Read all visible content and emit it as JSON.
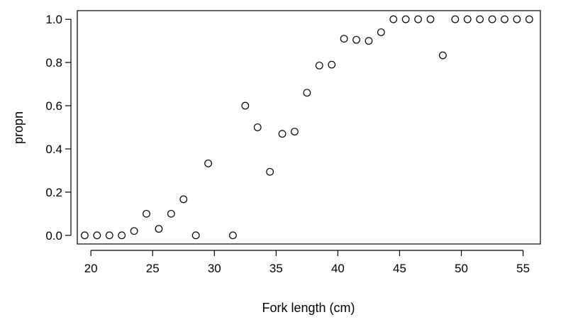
{
  "chart_data": {
    "type": "scatter",
    "title": "",
    "xlabel": "Fork length (cm)",
    "ylabel": "propn",
    "xlim": [
      18.9,
      56.4
    ],
    "ylim": [
      -0.04,
      1.04
    ],
    "xticks": [
      20,
      25,
      30,
      35,
      40,
      45,
      50,
      55
    ],
    "yticks": [
      0.0,
      0.2,
      0.4,
      0.6,
      0.8,
      1.0
    ],
    "ytick_labels": [
      "0.0",
      "0.2",
      "0.4",
      "0.6",
      "0.8",
      "1.0"
    ],
    "grid": false,
    "marker": "open-circle",
    "marker_color": "#000000",
    "series": [
      {
        "x": [
          19.5,
          20.5,
          21.5,
          22.5,
          23.5,
          24.5,
          25.5,
          26.5,
          27.5,
          28.5,
          29.5,
          31.5,
          32.5,
          33.5,
          34.5,
          35.5,
          36.5,
          37.5,
          38.5,
          39.5,
          40.5,
          41.5,
          42.5,
          43.5,
          44.5,
          45.5,
          46.5,
          47.5,
          48.5,
          49.5,
          50.5,
          51.5,
          52.5,
          53.5,
          54.5,
          55.5
        ],
        "y": [
          0.0,
          0.0,
          0.0,
          0.0,
          0.02,
          0.1,
          0.03,
          0.1,
          0.167,
          0.0,
          0.333,
          0.0,
          0.6,
          0.5,
          0.294,
          0.47,
          0.48,
          0.66,
          0.786,
          0.79,
          0.91,
          0.905,
          0.9,
          0.94,
          1.0,
          1.0,
          1.0,
          1.0,
          0.833,
          1.0,
          1.0,
          1.0,
          1.0,
          1.0,
          1.0,
          1.0
        ]
      }
    ]
  }
}
